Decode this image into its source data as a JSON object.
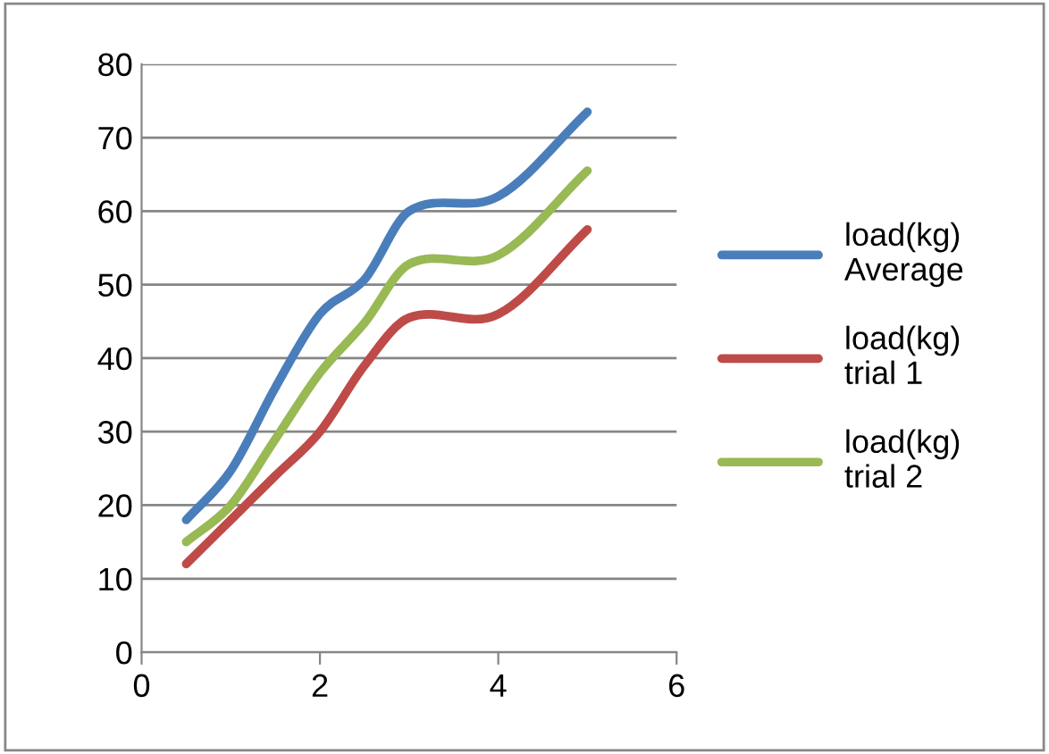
{
  "chart_data": {
    "type": "line",
    "x": [
      0.5,
      1,
      1.5,
      2,
      2.5,
      3,
      4,
      5
    ],
    "series": [
      {
        "name": "load(kg) Average",
        "color": "#4a7ebb",
        "values": [
          18,
          24.7,
          36,
          46,
          50.7,
          60,
          62,
          73.5
        ]
      },
      {
        "name": "load(kg) trial 1",
        "color": "#be4b48",
        "values": [
          12,
          18,
          24,
          30,
          39,
          45.5,
          46,
          57.5
        ]
      },
      {
        "name": "load(kg) trial 2",
        "color": "#98b954",
        "values": [
          15,
          20,
          29,
          38,
          44.8,
          52.8,
          54,
          65.5
        ]
      }
    ],
    "xlim": [
      0,
      6
    ],
    "xticks": [
      0,
      2,
      4,
      6
    ],
    "ylim": [
      0,
      80
    ],
    "yticks": [
      0,
      10,
      20,
      30,
      40,
      50,
      60,
      70,
      80
    ],
    "grid": "y",
    "legend": "right",
    "marker": "none",
    "line_style": "solid"
  }
}
